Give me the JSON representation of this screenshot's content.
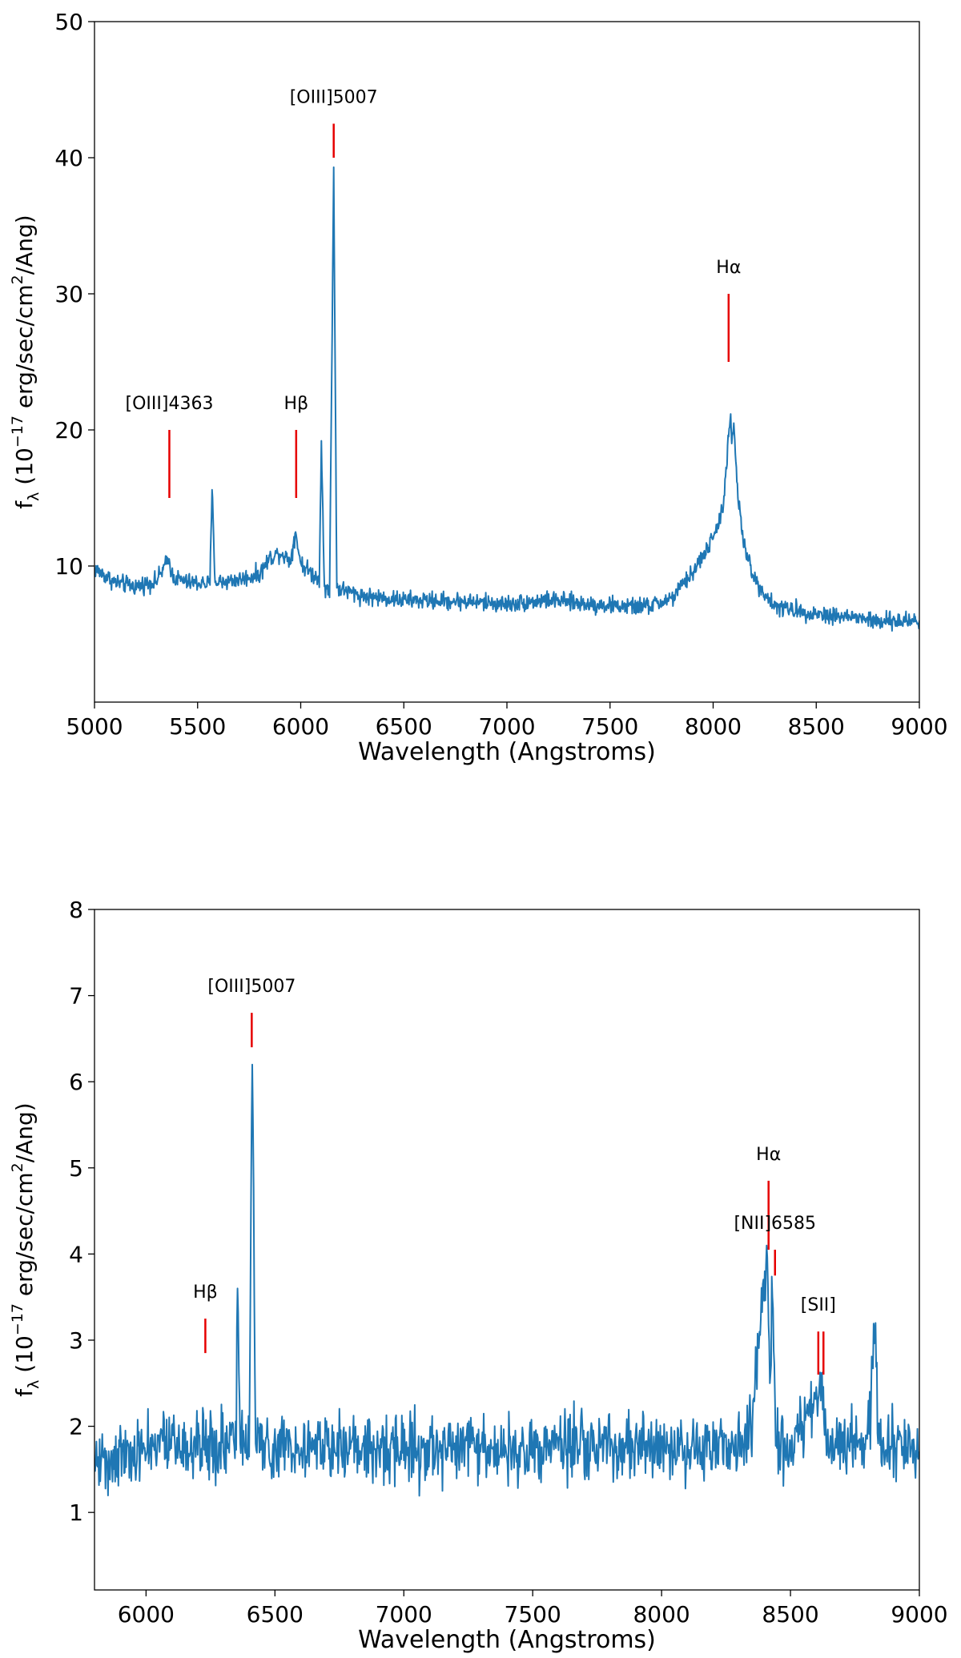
{
  "chart_data": [
    {
      "type": "line",
      "xlabel": "Wavelength (Angstroms)",
      "ylabel_main": "f",
      "ylabel_sub": "λ",
      "ylabel_pre": " (10",
      "ylabel_exp": "−17",
      "ylabel_mid": " erg/sec/cm",
      "ylabel_exp2": "2",
      "ylabel_post": "/Ang)",
      "xlim": [
        5000,
        9000
      ],
      "ylim": [
        0,
        50
      ],
      "xticks": [
        5000,
        5500,
        6000,
        6500,
        7000,
        7500,
        8000,
        8500,
        9000
      ],
      "yticks": [
        10,
        20,
        30,
        40,
        50
      ],
      "grid": false,
      "line_color": "#1f77b4",
      "marker_color": "#e60000",
      "series": [
        {
          "name": "spectrum",
          "anchors": [
            [
              5000,
              9.8
            ],
            [
              5100,
              8.8
            ],
            [
              5200,
              8.5
            ],
            [
              5300,
              8.9
            ],
            [
              5360,
              10.5
            ],
            [
              5380,
              9.2
            ],
            [
              5450,
              8.8
            ],
            [
              5560,
              8.7
            ],
            [
              5570,
              15.6
            ],
            [
              5585,
              8.8
            ],
            [
              5700,
              9.0
            ],
            [
              5800,
              9.4
            ],
            [
              5850,
              10.6
            ],
            [
              5900,
              11.0
            ],
            [
              5950,
              10.4
            ],
            [
              5975,
              12.5
            ],
            [
              6000,
              10.2
            ],
            [
              6050,
              9.5
            ],
            [
              6090,
              9.0
            ],
            [
              6100,
              19.2
            ],
            [
              6115,
              8.5
            ],
            [
              6140,
              8.0
            ],
            [
              6160,
              39.3
            ],
            [
              6175,
              8.4
            ],
            [
              6300,
              7.8
            ],
            [
              6500,
              7.5
            ],
            [
              6800,
              7.4
            ],
            [
              7000,
              7.2
            ],
            [
              7200,
              7.5
            ],
            [
              7400,
              7.2
            ],
            [
              7600,
              7.0
            ],
            [
              7700,
              7.1
            ],
            [
              7800,
              7.6
            ],
            [
              7900,
              9.5
            ],
            [
              8000,
              12.0
            ],
            [
              8050,
              14.5
            ],
            [
              8075,
              19.5
            ],
            [
              8085,
              20.8
            ],
            [
              8090,
              19.0
            ],
            [
              8100,
              20.5
            ],
            [
              8120,
              15.0
            ],
            [
              8150,
              11.5
            ],
            [
              8200,
              9.0
            ],
            [
              8300,
              7.0
            ],
            [
              8500,
              6.5
            ],
            [
              8700,
              6.2
            ],
            [
              8800,
              5.9
            ],
            [
              9000,
              6.0
            ]
          ],
          "noise": 0.45
        }
      ],
      "annotations": [
        {
          "label": "[OIII]4363",
          "x": 5363,
          "y0": 15,
          "y1": 20
        },
        {
          "label": "Hβ",
          "x": 5978,
          "y0": 15,
          "y1": 20
        },
        {
          "label": "[OIII]5007",
          "x": 6160,
          "y0": 40,
          "y1": 42.5
        },
        {
          "label": "Hα",
          "x": 8075,
          "y0": 25,
          "y1": 30
        }
      ]
    },
    {
      "type": "line",
      "xlabel": "Wavelength (Angstroms)",
      "ylabel_main": "f",
      "ylabel_sub": "λ",
      "ylabel_pre": " (10",
      "ylabel_exp": "−17",
      "ylabel_mid": " erg/sec/cm",
      "ylabel_exp2": "2",
      "ylabel_post": "/Ang)",
      "xlim": [
        5800,
        9000
      ],
      "ylim": [
        0.1,
        8
      ],
      "xticks": [
        6000,
        6500,
        7000,
        7500,
        8000,
        8500,
        9000
      ],
      "yticks": [
        1,
        2,
        3,
        4,
        5,
        6,
        7,
        8
      ],
      "grid": false,
      "line_color": "#1f77b4",
      "marker_color": "#e60000",
      "series": [
        {
          "name": "spectrum",
          "anchors": [
            [
              5800,
              1.6
            ],
            [
              6000,
              1.75
            ],
            [
              6200,
              1.8
            ],
            [
              6300,
              1.8
            ],
            [
              6350,
              1.9
            ],
            [
              6355,
              3.6
            ],
            [
              6365,
              1.8
            ],
            [
              6400,
              1.8
            ],
            [
              6412,
              6.2
            ],
            [
              6425,
              1.8
            ],
            [
              6600,
              1.8
            ],
            [
              7000,
              1.75
            ],
            [
              7500,
              1.75
            ],
            [
              8000,
              1.75
            ],
            [
              8300,
              1.75
            ],
            [
              8350,
              2.0
            ],
            [
              8400,
              3.8
            ],
            [
              8410,
              3.9
            ],
            [
              8420,
              2.5
            ],
            [
              8430,
              3.5
            ],
            [
              8445,
              1.8
            ],
            [
              8500,
              1.75
            ],
            [
              8610,
              2.4
            ],
            [
              8620,
              2.5
            ],
            [
              8640,
              1.8
            ],
            [
              8800,
              1.8
            ],
            [
              8830,
              3.2
            ],
            [
              8840,
              1.8
            ],
            [
              9000,
              1.7
            ]
          ],
          "noise": 0.28
        }
      ],
      "annotations": [
        {
          "label": "Hβ",
          "x": 6230,
          "y0": 2.85,
          "y1": 3.25
        },
        {
          "label": "[OIII]5007",
          "x": 6410,
          "y0": 6.4,
          "y1": 6.8
        },
        {
          "label": "Hα",
          "x": 8415,
          "y0": 4.05,
          "y1": 4.85
        },
        {
          "label": "[NII]6585",
          "x": 8440,
          "y0": 3.75,
          "y1": 4.05
        },
        {
          "label": "[SII]",
          "x": 8608,
          "y0": 2.6,
          "y1": 3.1
        },
        {
          "label": "",
          "x": 8628,
          "y0": 2.6,
          "y1": 3.1
        }
      ]
    }
  ]
}
